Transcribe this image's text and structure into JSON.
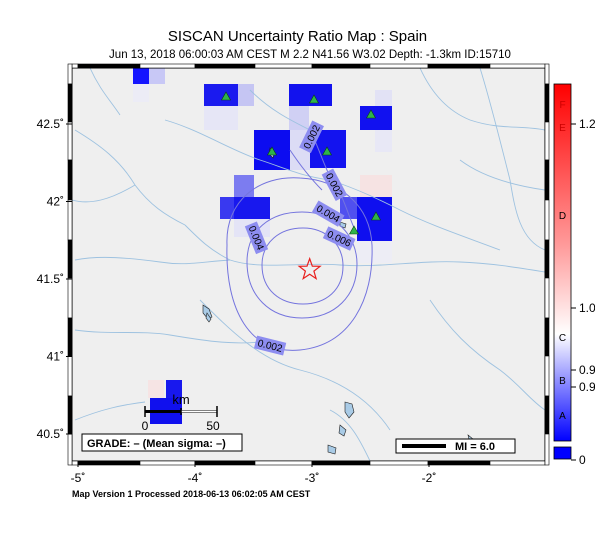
{
  "header": {
    "title": "SISCAN Uncertainty Ratio Map : Spain",
    "subtitle": "Jun 13, 2018 06:00:03 AM CEST   M 2.2   N41.56 W3.02   Depth: -1.3km   ID:15710"
  },
  "footer": {
    "version_text": "Map Version 1 Processed 2018-06-13 06:02:05 AM CEST"
  },
  "map": {
    "lat_ticks": [
      {
        "lat": 42.5,
        "label": "42.5˚"
      },
      {
        "lat": 42.0,
        "label": "42˚"
      },
      {
        "lat": 41.5,
        "label": "41.5˚"
      },
      {
        "lat": 41.0,
        "label": "41˚"
      },
      {
        "lat": 40.5,
        "label": "40.5˚"
      }
    ],
    "lon_ticks": [
      {
        "lon": -5,
        "label": "-5˚"
      },
      {
        "lon": -4,
        "label": "-4˚"
      },
      {
        "lon": -3,
        "label": "-3˚"
      },
      {
        "lon": -2,
        "label": "-2˚"
      }
    ],
    "epicenter": {
      "lat": 41.56,
      "lon": -3.02,
      "color": "#e8201e"
    },
    "contours": [
      {
        "label": "0.002"
      },
      {
        "label": "0.002"
      },
      {
        "label": "0.002"
      },
      {
        "label": "0.004"
      },
      {
        "label": "0.004"
      },
      {
        "label": "0.006"
      }
    ],
    "grade_text": "GRADE: – (Mean sigma: –)",
    "mi_legend": "MI = 6.0",
    "scale_unit": "km",
    "scale_labels": [
      "0",
      "50"
    ],
    "station_color": "#2fb34a"
  },
  "colorbar": {
    "letters": [
      {
        "text": "F",
        "color": "#cc0000"
      },
      {
        "text": "E",
        "color": "#cc0000"
      },
      {
        "text": "D",
        "color": "#000000"
      },
      {
        "text": "C",
        "color": "#000000"
      },
      {
        "text": "B",
        "color": "#000000"
      },
      {
        "text": "A",
        "color": "#000000"
      }
    ],
    "ticks": [
      "1.2",
      "1.0",
      "0.9",
      "0.9",
      "0"
    ]
  }
}
